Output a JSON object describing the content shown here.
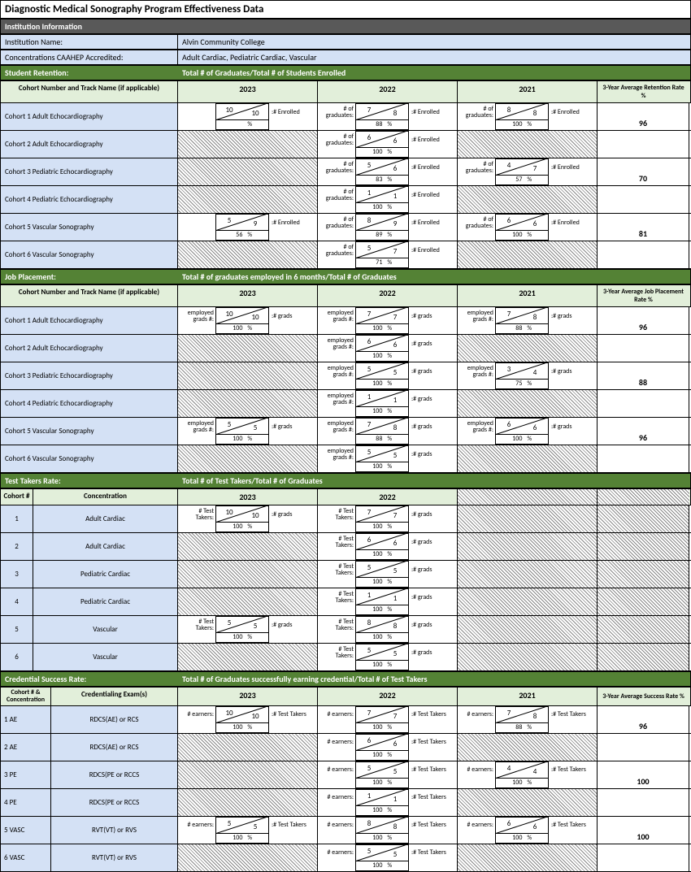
{
  "title": "Diagnostic Medical Sonography Program Effectiveness Data",
  "institution": {
    "header": "Institution Information",
    "name_label": "Institution Name:",
    "name": "Alvin Community College",
    "conc_label": "Concentrations CAAHEP Accredited:",
    "conc": "Adult Cardiac, Pediatric Cardiac, Vascular"
  },
  "years": [
    "2023",
    "2022",
    "2021"
  ],
  "retention": {
    "title": "Student Retention:",
    "subtitle": "Total # of Graduates/Total # of Students Enrolled",
    "cohort_hdr": "Cohort Number and Track Name (if applicable)",
    "avg_hdr": "3-Year Average Retention Rate %",
    "left_lbl": "# of graduates:",
    "right_lbl": ":# Enrolled",
    "rows": [
      {
        "name": "Cohort 1 Adult Echocardiography",
        "y": [
          {
            "lbl": "",
            "n1": "10",
            "n2": "10",
            "pct": "",
            "sub": ":# Enrolled"
          },
          {
            "lbl": "# of graduates:",
            "n1": "7",
            "n2": "8",
            "pct": "88",
            "sub": ":# Enrolled"
          },
          {
            "lbl": "# of graduates:",
            "n1": "8",
            "n2": "8",
            "pct": "100",
            "sub": ":# Enrolled"
          }
        ],
        "avg": "96"
      },
      {
        "name": "Cohort 2 Adult Echocardiography",
        "y": [
          null,
          {
            "lbl": "# of graduates:",
            "n1": "6",
            "n2": "6",
            "pct": "100",
            "sub": ":# Enrolled"
          },
          null
        ],
        "avg": ""
      },
      {
        "name": "Cohort 3 Pediatric Echocardiography",
        "y": [
          null,
          {
            "lbl": "# of graduates:",
            "n1": "5",
            "n2": "6",
            "pct": "83",
            "sub": ":# Enrolled"
          },
          {
            "lbl": "# of graduates:",
            "n1": "4",
            "n2": "7",
            "pct": "57",
            "sub": ":# Enrolled"
          }
        ],
        "avg": "70"
      },
      {
        "name": "Cohort 4 Pediatric Echocardiography",
        "y": [
          null,
          {
            "lbl": "# of graduates:",
            "n1": "1",
            "n2": "1",
            "pct": "100",
            "sub": ":# Enrolled"
          },
          null
        ],
        "avg": ""
      },
      {
        "name": "Cohort 5 Vascular Sonography",
        "y": [
          {
            "lbl": "",
            "n1": "5",
            "n2": "9",
            "pct": "56",
            "sub": ":# Enrolled"
          },
          {
            "lbl": "# of graduates:",
            "n1": "8",
            "n2": "9",
            "pct": "89",
            "sub": ":# Enrolled"
          },
          {
            "lbl": "# of graduates:",
            "n1": "6",
            "n2": "6",
            "pct": "100",
            "sub": ":# Enrolled"
          }
        ],
        "avg": "81"
      },
      {
        "name": "Cohort 6 Vascular Sonography",
        "y": [
          null,
          {
            "lbl": "# of graduates:",
            "n1": "5",
            "n2": "7",
            "pct": "71",
            "sub": ":# Enrolled"
          },
          null
        ],
        "avg": ""
      }
    ]
  },
  "placement": {
    "title": "Job Placement:",
    "subtitle": "Total # of graduates employed in 6 months/Total # of Graduates",
    "cohort_hdr": "Cohort Number and Track Name (if applicable)",
    "avg_hdr": "3-Year Average Job Placement Rate %",
    "rows": [
      {
        "name": "Cohort 1 Adult Echocardiography",
        "y": [
          {
            "lbl": "employed grads #:",
            "n1": "10",
            "n2": "10",
            "pct": "100",
            "sub": ":# grads"
          },
          {
            "lbl": "employed grads #:",
            "n1": "7",
            "n2": "7",
            "pct": "100",
            "sub": ":# grads"
          },
          {
            "lbl": "employed grads #:",
            "n1": "7",
            "n2": "8",
            "pct": "88",
            "sub": ":# grads"
          }
        ],
        "avg": "96"
      },
      {
        "name": "Cohort 2 Adult Echocardiography",
        "y": [
          null,
          {
            "lbl": "employed grads #:",
            "n1": "6",
            "n2": "6",
            "pct": "100",
            "sub": ":# grads"
          },
          null
        ],
        "avg": ""
      },
      {
        "name": "Cohort 3 Pediatric Echocardiography",
        "y": [
          null,
          {
            "lbl": "employed grads #:",
            "n1": "5",
            "n2": "5",
            "pct": "100",
            "sub": ":# grads"
          },
          {
            "lbl": "employed grads #:",
            "n1": "3",
            "n2": "4",
            "pct": "75",
            "sub": ":# grads"
          }
        ],
        "avg": "88"
      },
      {
        "name": "Cohort 4 Pediatric Echocardiography",
        "y": [
          null,
          {
            "lbl": "employed grads #:",
            "n1": "1",
            "n2": "1",
            "pct": "100",
            "sub": ":# grads"
          },
          null
        ],
        "avg": ""
      },
      {
        "name": "Cohort 5 Vascular Sonography",
        "y": [
          {
            "lbl": "employed grads #:",
            "n1": "5",
            "n2": "5",
            "pct": "100",
            "sub": ":# grads"
          },
          {
            "lbl": "employed grads #:",
            "n1": "7",
            "n2": "8",
            "pct": "88",
            "sub": ":# grads"
          },
          {
            "lbl": "employed grads #:",
            "n1": "6",
            "n2": "6",
            "pct": "100",
            "sub": ":# grads"
          }
        ],
        "avg": "96"
      },
      {
        "name": "Cohort 6 Vascular Sonography",
        "y": [
          null,
          {
            "lbl": "employed grads #:",
            "n1": "5",
            "n2": "5",
            "pct": "100",
            "sub": ":# grads"
          },
          null
        ],
        "avg": ""
      }
    ]
  },
  "takers": {
    "title": "Test Takers Rate:",
    "subtitle": "Total # of Test Takers/Total # of Graduates",
    "h1": "Cohort #",
    "h2": "Concentration",
    "rows": [
      {
        "num": "1",
        "conc": "Adult Cardiac",
        "y": [
          {
            "lbl": "# Test Takers:",
            "n1": "10",
            "n2": "10",
            "pct": "100",
            "sub": ":# grads"
          },
          {
            "lbl": "# Test Takers:",
            "n1": "7",
            "n2": "7",
            "pct": "100",
            "sub": ":# grads"
          }
        ]
      },
      {
        "num": "2",
        "conc": "Adult Cardiac",
        "y": [
          null,
          {
            "lbl": "# Test Takers:",
            "n1": "6",
            "n2": "6",
            "pct": "100",
            "sub": ":# grads"
          }
        ]
      },
      {
        "num": "3",
        "conc": "Pediatric Cardiac",
        "y": [
          null,
          {
            "lbl": "# Test Takers:",
            "n1": "5",
            "n2": "5",
            "pct": "100",
            "sub": ":# grads"
          }
        ]
      },
      {
        "num": "4",
        "conc": "Pediatric Cardiac",
        "y": [
          null,
          {
            "lbl": "# Test Takers:",
            "n1": "1",
            "n2": "1",
            "pct": "100",
            "sub": ":# grads"
          }
        ]
      },
      {
        "num": "5",
        "conc": "Vascular",
        "y": [
          {
            "lbl": "# Test Takers:",
            "n1": "5",
            "n2": "5",
            "pct": "100",
            "sub": ":# grads"
          },
          {
            "lbl": "# Test Takers:",
            "n1": "8",
            "n2": "8",
            "pct": "100",
            "sub": ":# grads"
          }
        ]
      },
      {
        "num": "6",
        "conc": "Vascular",
        "y": [
          null,
          {
            "lbl": "# Test Takers:",
            "n1": "5",
            "n2": "5",
            "pct": "100",
            "sub": ":# grads"
          }
        ]
      }
    ]
  },
  "credential": {
    "title": "Credential Success Rate:",
    "subtitle": "Total # of Graduates successfully earning credential/Total # of Test Takers",
    "h1": "Cohort # & Concentration",
    "h2": "Credentialing Exam(s)",
    "avg_hdr": "3-Year Average Success Rate %",
    "rows": [
      {
        "c1": "1 AE",
        "c2": "RDCS(AE) or RCS",
        "y": [
          {
            "lbl": "# earners:",
            "n1": "10",
            "n2": "10",
            "pct": "100",
            "sub": ":# Test Takers"
          },
          {
            "lbl": "# earners:",
            "n1": "7",
            "n2": "7",
            "pct": "100",
            "sub": ":# Test Takers"
          },
          {
            "lbl": "# earners:",
            "n1": "7",
            "n2": "8",
            "pct": "88",
            "sub": ":# Test Takers"
          }
        ],
        "avg": "96"
      },
      {
        "c1": "2 AE",
        "c2": "RDCS(AE) or RCS",
        "y": [
          null,
          {
            "lbl": "# earners:",
            "n1": "6",
            "n2": "6",
            "pct": "100",
            "sub": ":# Test Takers"
          },
          null
        ],
        "avg": ""
      },
      {
        "c1": "3 PE",
        "c2": "RDCS(PE or RCCS",
        "y": [
          null,
          {
            "lbl": "# earners:",
            "n1": "5",
            "n2": "5",
            "pct": "100",
            "sub": ":# Test Takers"
          },
          {
            "lbl": "# earners:",
            "n1": "4",
            "n2": "4",
            "pct": "100",
            "sub": ":# Test Takers"
          }
        ],
        "avg": "100"
      },
      {
        "c1": "4 PE",
        "c2": "RDCS(PE or RCCS",
        "y": [
          null,
          {
            "lbl": "# earners:",
            "n1": "1",
            "n2": "1",
            "pct": "100",
            "sub": ":# Test Takers"
          },
          null
        ],
        "avg": ""
      },
      {
        "c1": "5 VASC",
        "c2": "RVT(VT) or RVS",
        "y": [
          {
            "lbl": "# earners:",
            "n1": "5",
            "n2": "5",
            "pct": "100",
            "sub": ":# Test Takers"
          },
          {
            "lbl": "# earners:",
            "n1": "8",
            "n2": "8",
            "pct": "100",
            "sub": ":# Test Takers"
          },
          {
            "lbl": "# earners:",
            "n1": "6",
            "n2": "6",
            "pct": "100",
            "sub": ":# Test Takers"
          }
        ],
        "avg": "100"
      },
      {
        "c1": "6 VASC",
        "c2": "RVT(VT) or RVS",
        "y": [
          null,
          {
            "lbl": "# earners:",
            "n1": "5",
            "n2": "5",
            "pct": "100",
            "sub": ":# Test Takers"
          },
          null
        ],
        "avg": ""
      }
    ]
  }
}
